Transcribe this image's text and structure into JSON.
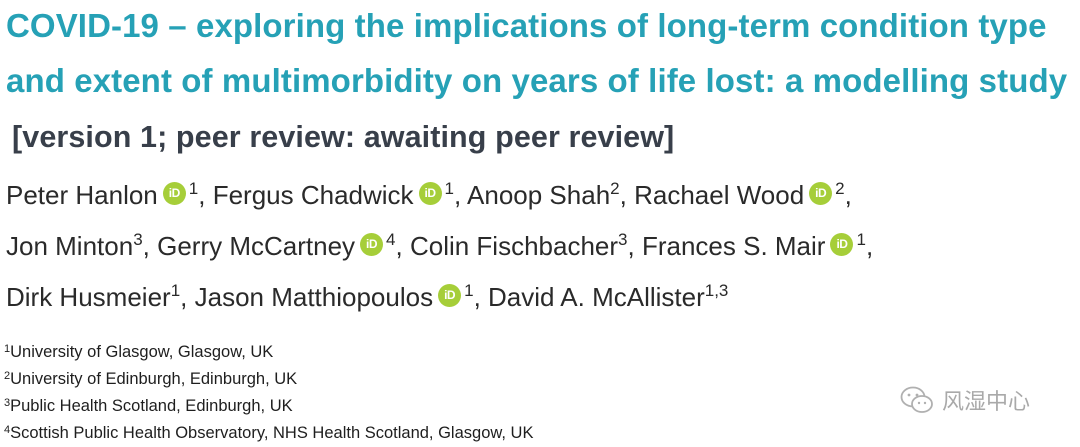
{
  "title": {
    "main": "COVID-19 – exploring the implications of long-term condition type and extent of multimorbidity on years of life lost: a modelling study",
    "version": "[version 1; peer review: awaiting peer review]"
  },
  "authors": [
    {
      "name": "Peter Hanlon",
      "orcid": true,
      "affil": "1",
      "sep": ", "
    },
    {
      "name": "Fergus Chadwick",
      "orcid": true,
      "affil": "1",
      "sep": ", "
    },
    {
      "name": "Anoop Shah",
      "orcid": false,
      "affil": "2",
      "sep": ", "
    },
    {
      "name": "Rachael Wood",
      "orcid": true,
      "affil": "2",
      "sep": ","
    },
    {
      "name": "Jon Minton",
      "orcid": false,
      "affil": "3",
      "sep": ", "
    },
    {
      "name": "Gerry McCartney",
      "orcid": true,
      "affil": "4",
      "sep": ", "
    },
    {
      "name": "Colin Fischbacher",
      "orcid": false,
      "affil": "3",
      "sep": ", "
    },
    {
      "name": "Frances S. Mair",
      "orcid": true,
      "affil": "1",
      "sep": ","
    },
    {
      "name": "Dirk Husmeier",
      "orcid": false,
      "affil": "1",
      "sep": ", "
    },
    {
      "name": "Jason Matthiopoulos",
      "orcid": true,
      "affil": "1",
      "sep": ", "
    },
    {
      "name": "David A. McAllister",
      "orcid": false,
      "affil": "1,3",
      "sep": ""
    }
  ],
  "orcid_label": "iD",
  "orcid_color": "#a6ce39",
  "affiliations": [
    {
      "num": "1",
      "text": "University of Glasgow, Glasgow, UK"
    },
    {
      "num": "2",
      "text": "University of Edinburgh, Edinburgh, UK"
    },
    {
      "num": "3",
      "text": "Public Health Scotland, Edinburgh, UK"
    },
    {
      "num": "4",
      "text": "Scottish Public Health Observatory, NHS Health Scotland, Glasgow, UK"
    }
  ],
  "watermark": {
    "icon": "wechat-icon",
    "text": "风湿中心"
  },
  "colors": {
    "title": "#26a1b6",
    "version": "#383f4a",
    "text": "#2a2a2a"
  }
}
